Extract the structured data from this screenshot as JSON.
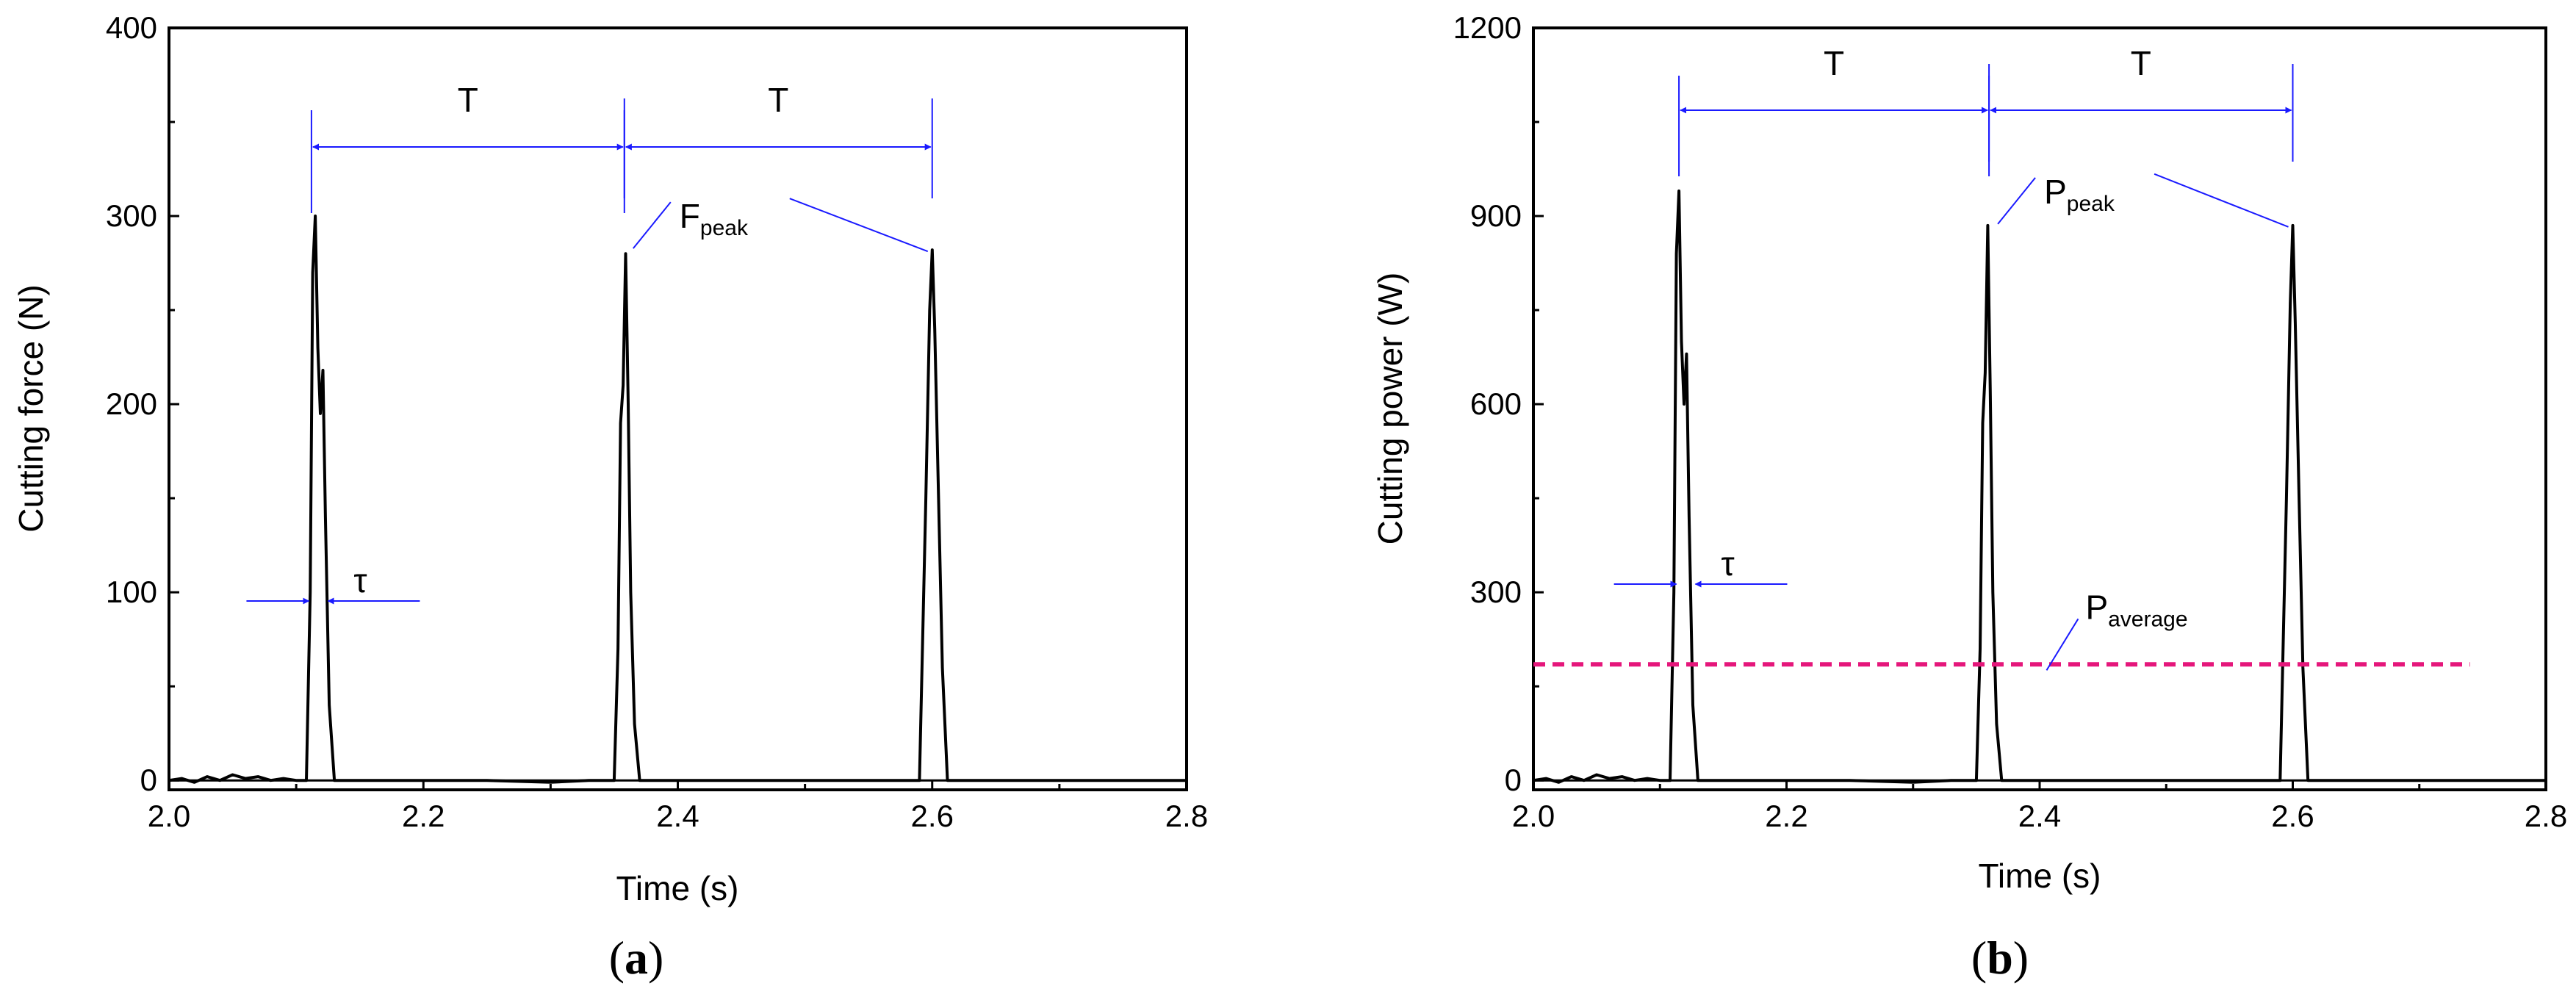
{
  "chart_data": [
    {
      "type": "line",
      "panel_label": "a",
      "xlabel": "Time (s)",
      "ylabel": "Cutting force (N)",
      "xlim": [
        2.0,
        2.8
      ],
      "ylim": [
        -5,
        400
      ],
      "xticks": [
        2.0,
        2.2,
        2.4,
        2.6,
        2.8
      ],
      "yticks": [
        0,
        100,
        200,
        300,
        400
      ],
      "grid": false,
      "series": [
        {
          "color": "#000000",
          "x": [
            2.0,
            2.01,
            2.02,
            2.03,
            2.04,
            2.05,
            2.06,
            2.07,
            2.08,
            2.09,
            2.1,
            2.108,
            2.111,
            2.113,
            2.115,
            2.117,
            2.119,
            2.121,
            2.123,
            2.126,
            2.13,
            2.15,
            2.2,
            2.25,
            2.3,
            2.33,
            2.35,
            2.353,
            2.355,
            2.357,
            2.359,
            2.361,
            2.363,
            2.366,
            2.37,
            2.4,
            2.45,
            2.5,
            2.55,
            2.59,
            2.595,
            2.598,
            2.6,
            2.602,
            2.605,
            2.608,
            2.612,
            2.65,
            2.7,
            2.75,
            2.8
          ],
          "y": [
            0,
            1,
            -1,
            2,
            0,
            3,
            1,
            2,
            0,
            1,
            0,
            0,
            100,
            270,
            300,
            230,
            195,
            218,
            140,
            40,
            0,
            0,
            0,
            0,
            -1,
            0,
            0,
            70,
            190,
            210,
            280,
            200,
            100,
            30,
            0,
            0,
            0,
            0,
            0,
            0,
            150,
            250,
            282,
            240,
            150,
            60,
            0,
            0,
            0,
            0,
            0
          ]
        }
      ],
      "annotations": [
        {
          "type": "period-arrow",
          "label": "T",
          "x_start": 2.112,
          "x_end": 2.358
        },
        {
          "type": "period-arrow",
          "label": "T",
          "x_start": 2.358,
          "x_end": 2.6
        },
        {
          "type": "width-arrow",
          "label": "τ",
          "x_start": 2.11,
          "x_end": 2.125
        },
        {
          "type": "peak-label",
          "label": "F",
          "sub": "peak",
          "targets": [
            [
              2.358,
              282
            ],
            [
              2.6,
              282
            ]
          ]
        }
      ]
    },
    {
      "type": "line",
      "panel_label": "b",
      "xlabel": "Time (s)",
      "ylabel": "Cutting power (W)",
      "xlim": [
        2.0,
        2.8
      ],
      "ylim": [
        -15,
        1200
      ],
      "xticks": [
        2.0,
        2.2,
        2.4,
        2.6,
        2.8
      ],
      "yticks": [
        0,
        300,
        600,
        900,
        1200
      ],
      "grid": false,
      "series": [
        {
          "color": "#000000",
          "x": [
            2.0,
            2.01,
            2.02,
            2.03,
            2.04,
            2.05,
            2.06,
            2.07,
            2.08,
            2.09,
            2.1,
            2.108,
            2.111,
            2.113,
            2.115,
            2.117,
            2.119,
            2.121,
            2.123,
            2.126,
            2.13,
            2.15,
            2.2,
            2.25,
            2.3,
            2.33,
            2.35,
            2.353,
            2.355,
            2.357,
            2.359,
            2.361,
            2.363,
            2.366,
            2.37,
            2.4,
            2.45,
            2.5,
            2.55,
            2.59,
            2.595,
            2.598,
            2.6,
            2.602,
            2.605,
            2.608,
            2.612,
            2.65,
            2.7,
            2.75,
            2.8
          ],
          "y": [
            0,
            3,
            -3,
            6,
            0,
            9,
            3,
            6,
            0,
            3,
            0,
            0,
            300,
            840,
            940,
            700,
            600,
            680,
            420,
            120,
            0,
            0,
            0,
            0,
            -3,
            0,
            0,
            210,
            570,
            650,
            885,
            620,
            300,
            90,
            0,
            0,
            0,
            0,
            0,
            0,
            450,
            760,
            885,
            730,
            450,
            180,
            0,
            0,
            0,
            0,
            0
          ]
        },
        {
          "color": "#e5177b",
          "style": "dashed",
          "x": [
            2.0,
            2.74
          ],
          "y": [
            185,
            185
          ]
        }
      ],
      "annotations": [
        {
          "type": "period-arrow",
          "label": "T",
          "x_start": 2.115,
          "x_end": 2.36
        },
        {
          "type": "period-arrow",
          "label": "T",
          "x_start": 2.36,
          "x_end": 2.6
        },
        {
          "type": "width-arrow",
          "label": "τ",
          "x_start": 2.113,
          "x_end": 2.128
        },
        {
          "type": "peak-label",
          "label": "P",
          "sub": "peak",
          "targets": [
            [
              2.36,
              885
            ],
            [
              2.6,
              885
            ]
          ]
        },
        {
          "type": "series-label",
          "label": "P",
          "sub": "average",
          "target": [
            2.42,
            185
          ]
        }
      ]
    }
  ]
}
